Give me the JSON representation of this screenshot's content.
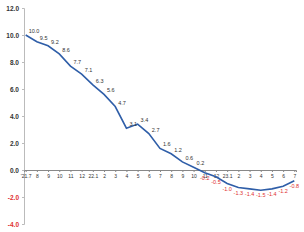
{
  "chart_data": {
    "type": "line",
    "categories": [
      "'21.7",
      "8",
      "9",
      "10",
      "11",
      "12",
      "22.1",
      "2",
      "3",
      "4",
      "5",
      "6",
      "7",
      "8",
      "9",
      "10",
      "11",
      "12",
      "23.1",
      "2",
      "3",
      "4",
      "5",
      "6",
      "7"
    ],
    "values": [
      10.0,
      9.5,
      9.2,
      8.6,
      7.7,
      7.1,
      6.3,
      5.6,
      4.7,
      3.1,
      3.4,
      2.7,
      1.6,
      1.2,
      0.6,
      0.2,
      -0.2,
      -0.5,
      -1.0,
      -1.3,
      -1.4,
      -1.5,
      -1.4,
      -1.2,
      -0.8
    ],
    "value_labels": [
      "10.0",
      "9.5",
      "9.2",
      "8.6",
      "7.7",
      "7.1",
      "6.3",
      "5.6",
      "4.7",
      "3.1",
      "3.4",
      "2.7",
      "1.6",
      "1.2",
      "0.6",
      "0.2",
      "-0.2",
      "-0.5",
      "-1.0",
      "-1.3",
      "-1.4",
      "-1.5",
      "-1.4",
      "-1.2",
      "-0.8"
    ],
    "color": "#2f5ea8",
    "ylim": [
      -4,
      12
    ],
    "yticks": [
      {
        "value": -4,
        "label": "-4.0"
      },
      {
        "value": -2,
        "label": "-2.0"
      },
      {
        "value": 0,
        "label": "0.0"
      },
      {
        "value": 2,
        "label": "2.0"
      },
      {
        "value": 4,
        "label": "4.0"
      },
      {
        "value": 6,
        "label": "6.0"
      },
      {
        "value": 8,
        "label": "8.0"
      },
      {
        "value": 10,
        "label": "10.0"
      },
      {
        "value": 12,
        "label": "12.0"
      }
    ],
    "data_labels": true,
    "grid": false
  }
}
